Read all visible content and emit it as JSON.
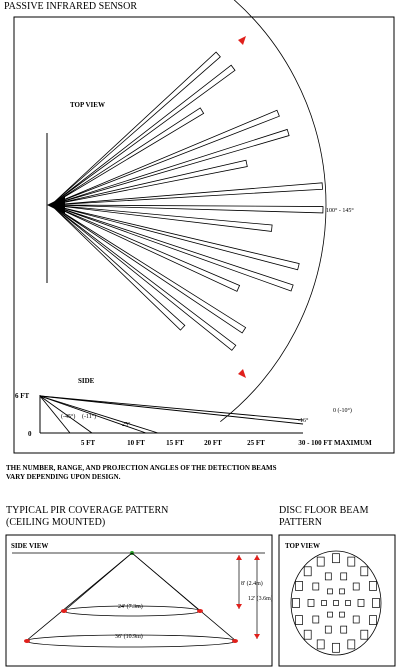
{
  "title": "PASSIVE INFRARED SENSOR",
  "top_view": {
    "label": "TOP VIEW",
    "angle_label": "100° - 145°"
  },
  "side": {
    "label": "SIDE",
    "height_label": "6 FT",
    "zero_label": "0",
    "angle_labels": {
      "angle_a": "(-45°)",
      "angle_b": "(-11°)",
      "angle_c": "-25°",
      "angle_d": "-16°",
      "angle_e": "0 (-10°)"
    },
    "axis_ticks": [
      "0",
      "5 FT",
      "10 FT",
      "15 FT",
      "20 FT",
      "25 FT",
      "30 - 100 FT MAXIMUM"
    ]
  },
  "note": [
    "THE NUMBER, RANGE, AND PROJECTION ANGLES OF THE DETECTION BEAMS",
    "VARY DEPENDING UPON DESIGN."
  ],
  "coverage": {
    "title_line1": "TYPICAL PIR COVERAGE PATTERN",
    "title_line2": "(CEILING MOUNTED)",
    "side_view_label": "SIDE VIEW",
    "dim_height_small": "8' (2.4m)",
    "dim_height_large": "12' (3.6m)",
    "dim_width_small": "24' (7.3m)",
    "dim_width_large": "36' (10.9m)"
  },
  "disc": {
    "title_line1": "DISC FLOOR BEAM",
    "title_line2": "PATTERN",
    "top_view_label": "TOP VIEW"
  },
  "colors": {
    "ink": "#000000",
    "accent_red": "#e0201c",
    "accent_green": "#2aa02a"
  }
}
